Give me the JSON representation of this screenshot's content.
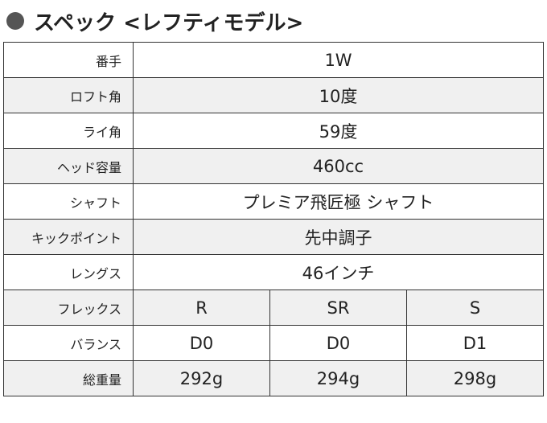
{
  "header": {
    "title": "スペック <レフティモデル>"
  },
  "table": {
    "rows": [
      {
        "label": "番手",
        "values": [
          "1W"
        ]
      },
      {
        "label": "ロフト角",
        "values": [
          "10度"
        ]
      },
      {
        "label": "ライ角",
        "values": [
          "59度"
        ]
      },
      {
        "label": "ヘッド容量",
        "values": [
          "460cc"
        ]
      },
      {
        "label": "シャフト",
        "values": [
          "プレミア飛匠極 シャフト"
        ]
      },
      {
        "label": "キックポイント",
        "values": [
          "先中調子"
        ]
      },
      {
        "label": "レングス",
        "values": [
          "46インチ"
        ]
      },
      {
        "label": "フレックス",
        "values": [
          "R",
          "SR",
          "S"
        ]
      },
      {
        "label": "バランス",
        "values": [
          "D0",
          "D0",
          "D1"
        ]
      },
      {
        "label": "総重量",
        "values": [
          "292g",
          "294g",
          "298g"
        ]
      }
    ]
  }
}
